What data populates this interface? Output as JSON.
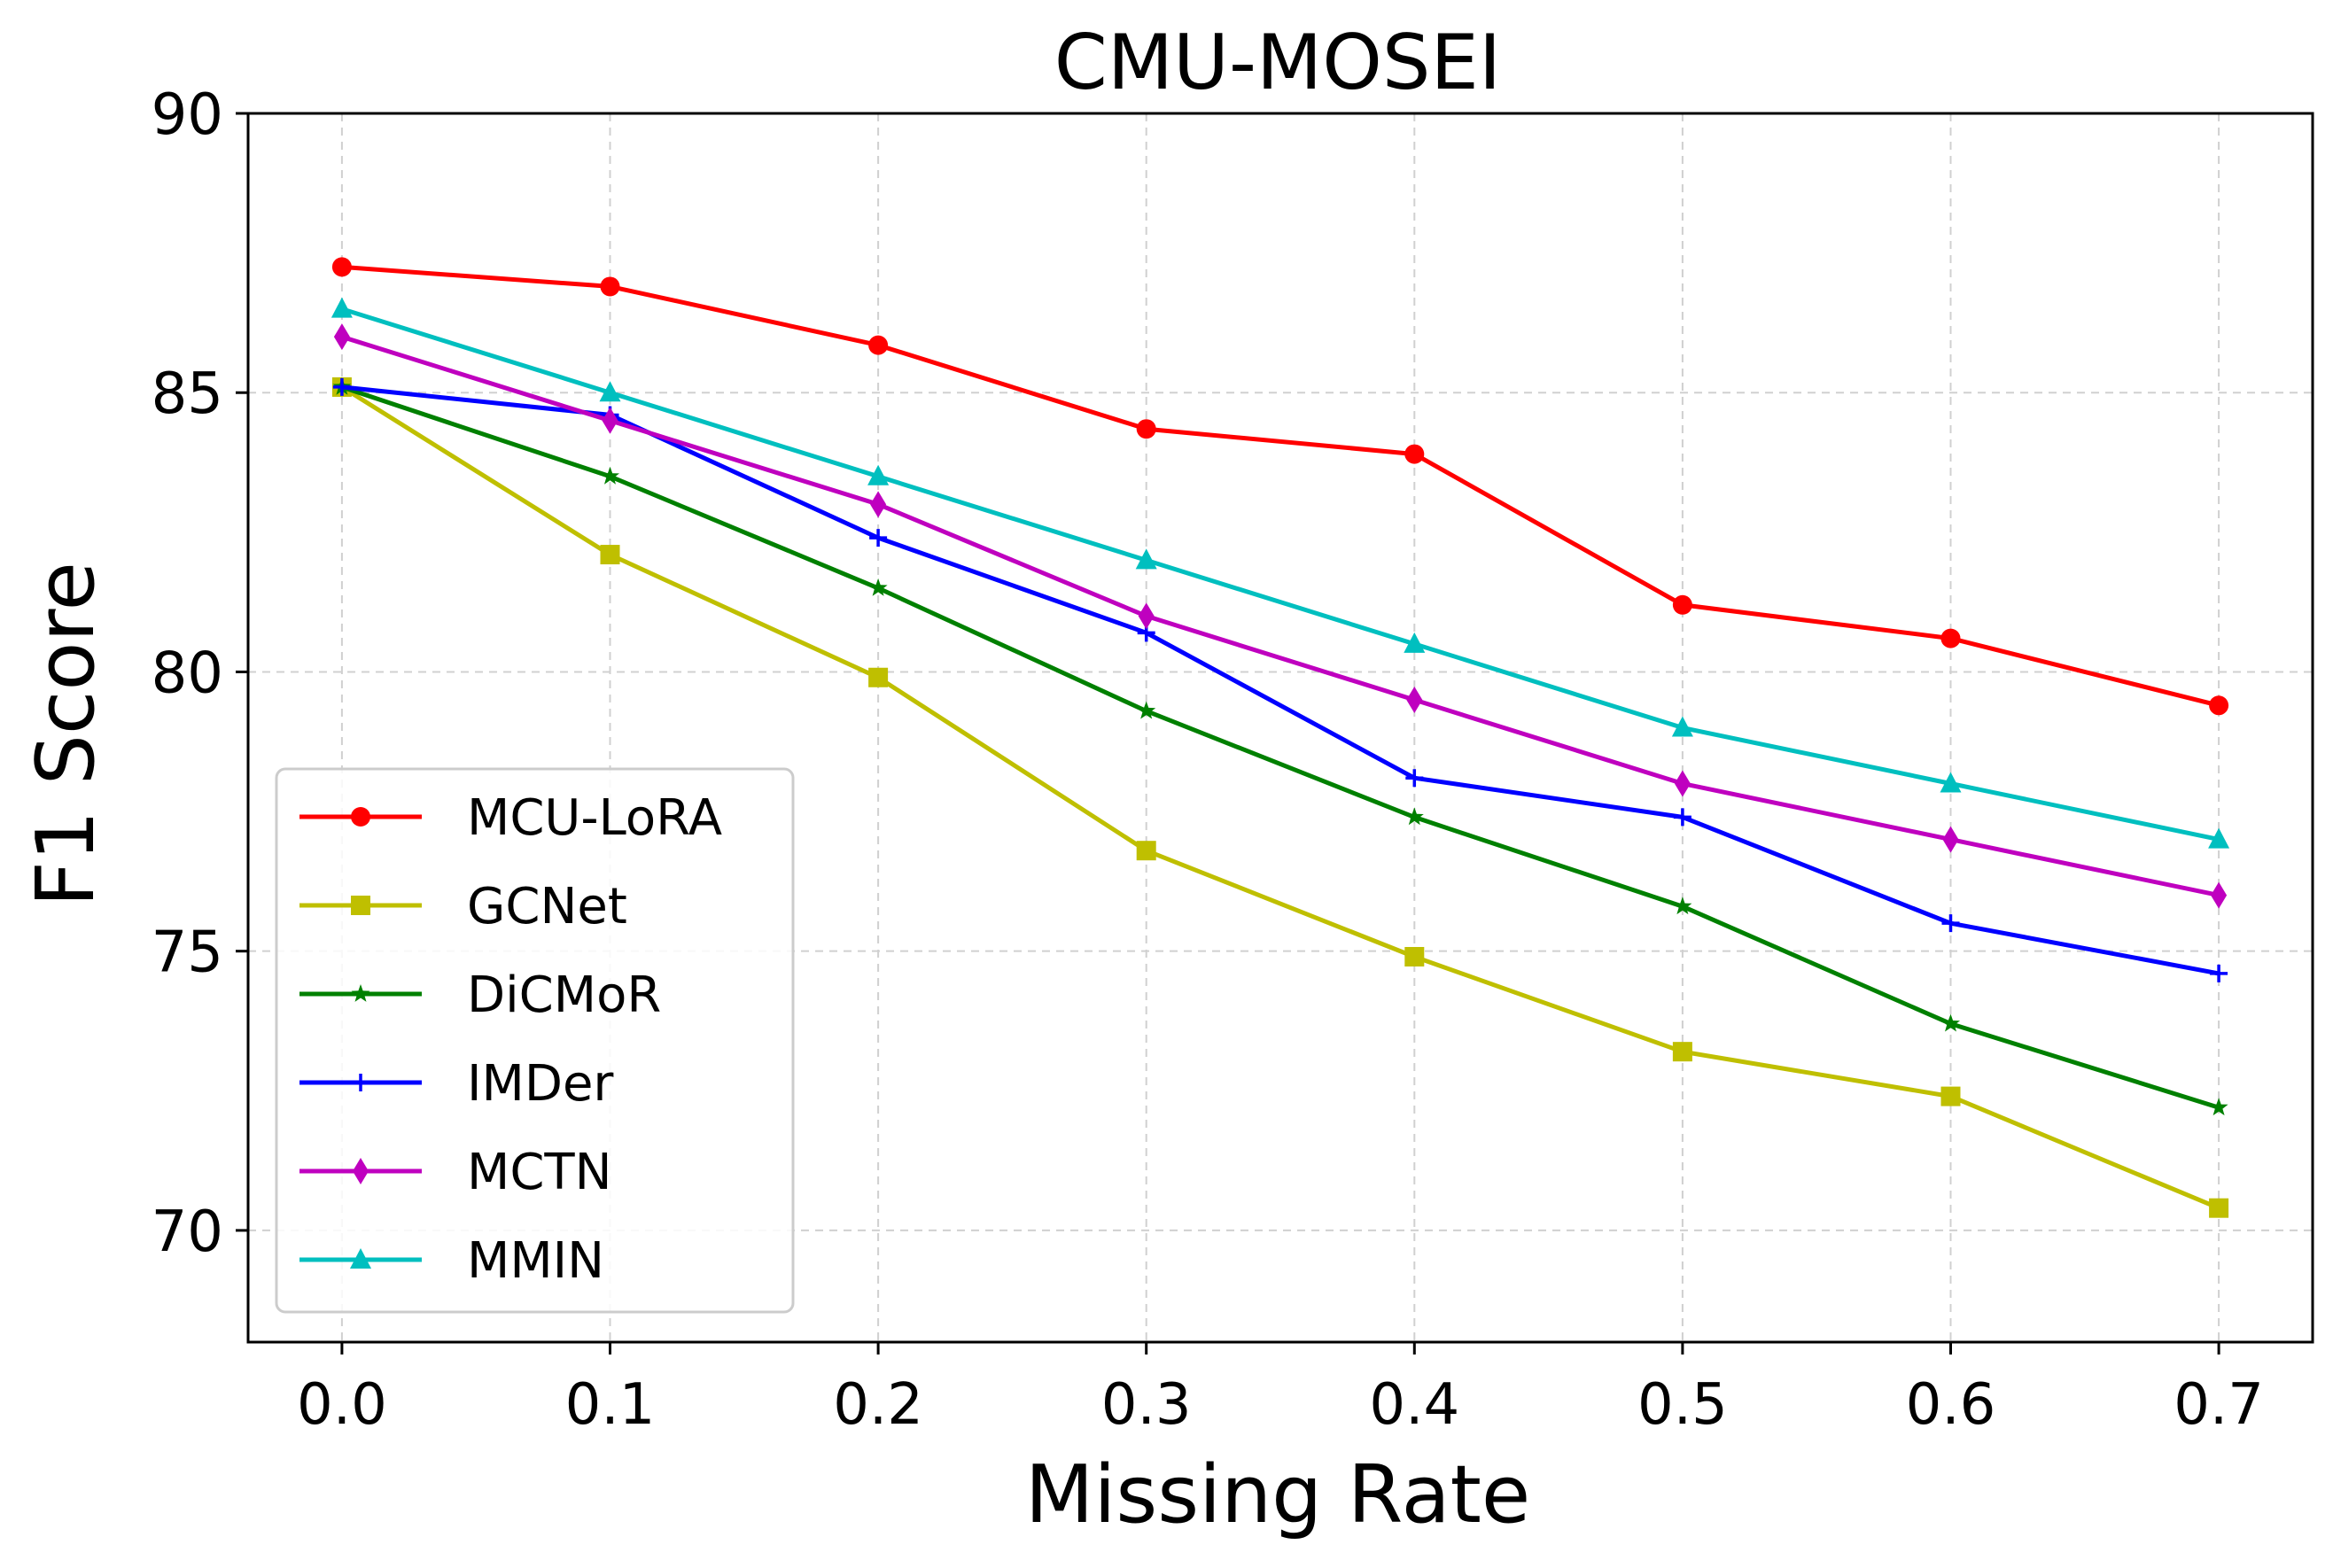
{
  "chart_data": {
    "type": "line",
    "title": "CMU-MOSEI",
    "xlabel": "Missing Rate",
    "ylabel": "F1 Score",
    "x": [
      0.0,
      0.1,
      0.2,
      0.3,
      0.4,
      0.5,
      0.6,
      0.7
    ],
    "x_tick_labels": [
      "0.0",
      "0.1",
      "0.2",
      "0.3",
      "0.4",
      "0.5",
      "0.6",
      "0.7"
    ],
    "xlim": [
      -0.035,
      0.735
    ],
    "ylim": [
      68,
      90
    ],
    "y_ticks": [
      70,
      75,
      80,
      85,
      90
    ],
    "y_tick_labels": [
      "70",
      "75",
      "80",
      "85",
      "90"
    ],
    "grid": true,
    "legend_position": "lower-left",
    "series": [
      {
        "name": "MCU-LoRA",
        "color": "#ff0000",
        "marker": "circle",
        "values": [
          87.25,
          86.9,
          85.85,
          84.35,
          83.9,
          81.2,
          80.6,
          79.4
        ]
      },
      {
        "name": "GCNet",
        "color": "#bfbf00",
        "marker": "square",
        "values": [
          85.1,
          82.1,
          79.9,
          76.8,
          74.9,
          73.2,
          72.4,
          70.4
        ]
      },
      {
        "name": "DiCMoR",
        "color": "#008000",
        "marker": "star",
        "values": [
          85.1,
          83.5,
          81.5,
          79.3,
          77.4,
          75.8,
          73.7,
          72.2
        ]
      },
      {
        "name": "IMDer",
        "color": "#0000ff",
        "marker": "plus",
        "values": [
          85.1,
          84.6,
          82.4,
          80.7,
          78.1,
          77.4,
          75.5,
          74.6
        ]
      },
      {
        "name": "MCTN",
        "color": "#bf00bf",
        "marker": "diamond",
        "values": [
          86.0,
          84.5,
          83.0,
          81.0,
          79.5,
          78.0,
          77.0,
          76.0
        ]
      },
      {
        "name": "MMIN",
        "color": "#00bfbf",
        "marker": "triangle",
        "values": [
          86.5,
          85.0,
          83.5,
          82.0,
          80.5,
          79.0,
          78.0,
          77.0
        ]
      }
    ]
  }
}
